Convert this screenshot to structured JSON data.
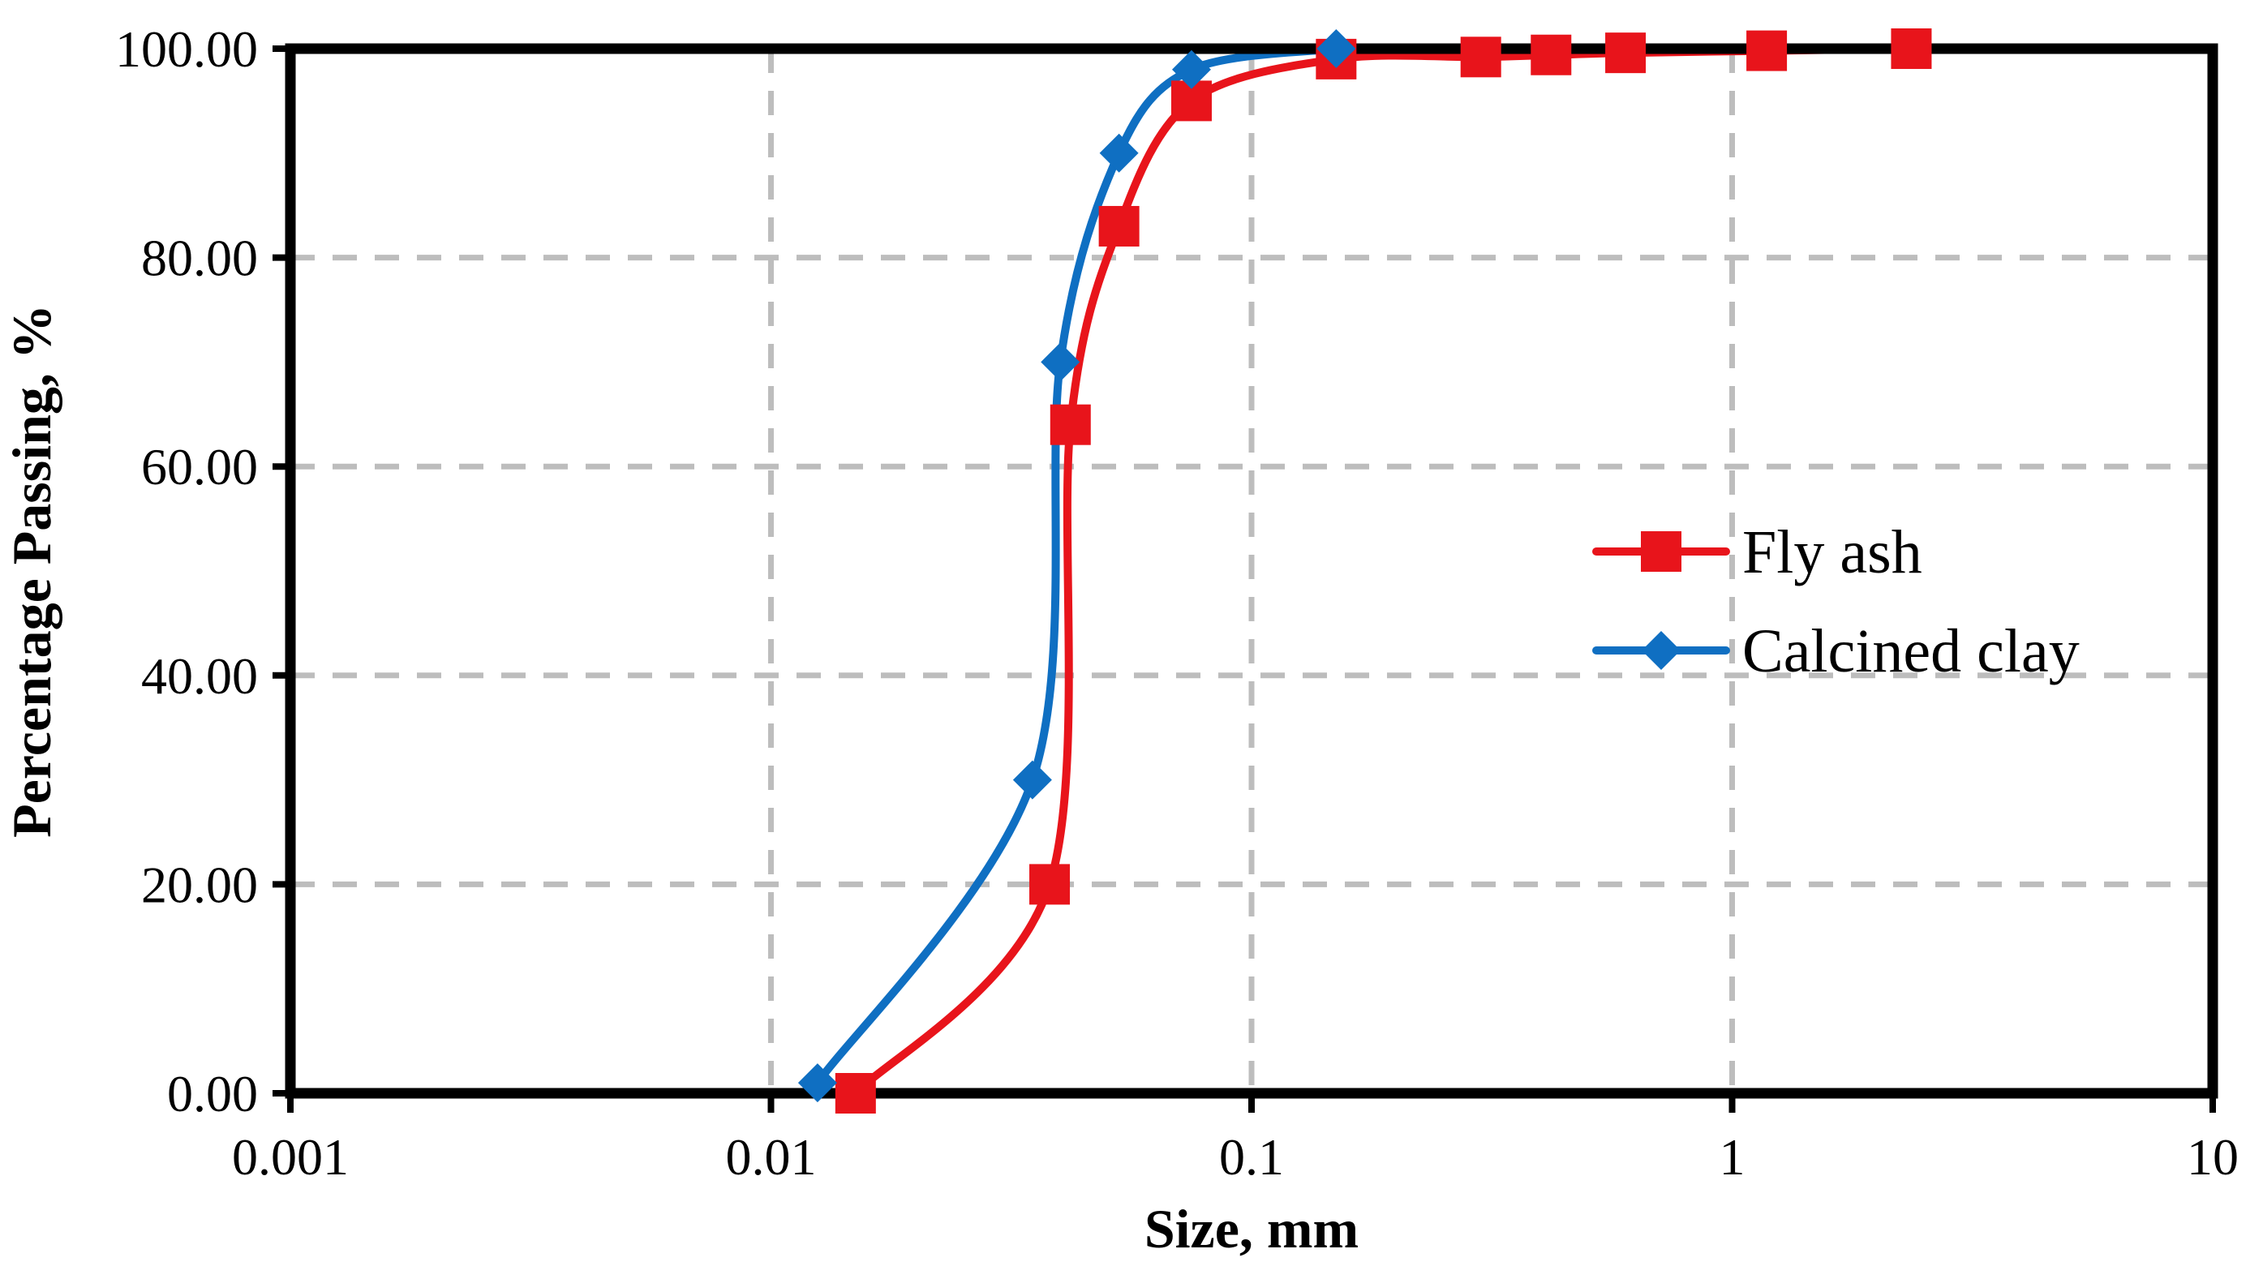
{
  "chart_data": {
    "type": "line",
    "title": "",
    "xlabel": "Size, mm",
    "ylabel": "Percentage Passing, %",
    "x_scale": "log",
    "xlim": [
      0.001,
      10
    ],
    "ylim": [
      0,
      100
    ],
    "x_ticks": [
      0.001,
      0.01,
      0.1,
      1,
      10
    ],
    "x_tick_labels": [
      "0.001",
      "0.01",
      "0.1",
      "1",
      "10"
    ],
    "y_ticks": [
      0,
      20,
      40,
      60,
      80,
      100
    ],
    "y_tick_labels": [
      "0.00",
      "20.00",
      "40.00",
      "60.00",
      "80.00",
      "100.00"
    ],
    "grid": true,
    "legend_position": "center-right",
    "series": [
      {
        "name": "Fly ash",
        "color": "#e8141b",
        "marker": "square",
        "x": [
          0.015,
          0.038,
          0.042,
          0.053,
          0.075,
          0.15,
          0.3,
          0.42,
          0.6,
          1.18,
          2.36
        ],
        "y": [
          0,
          20,
          64,
          83,
          95,
          99,
          99.2,
          99.4,
          99.6,
          99.8,
          100
        ]
      },
      {
        "name": "Calcined clay",
        "color": "#0f6fc2",
        "marker": "diamond",
        "x": [
          0.0125,
          0.035,
          0.04,
          0.053,
          0.075,
          0.15
        ],
        "y": [
          1,
          30,
          70,
          90,
          98,
          100
        ]
      }
    ]
  }
}
